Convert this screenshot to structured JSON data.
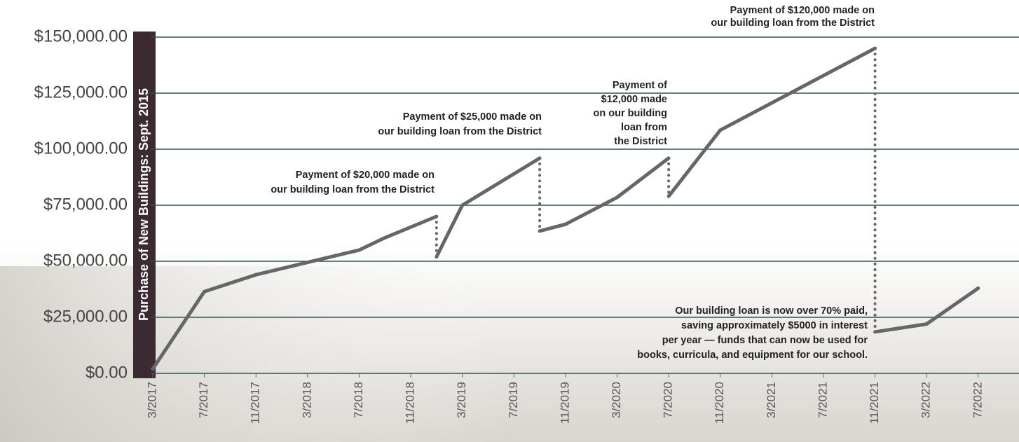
{
  "chart_data": {
    "type": "line",
    "y_axis_label": "Purchase of New Buildings: Sept. 2015",
    "x": [
      "2017-03",
      "2017-07",
      "2017-11",
      "2018-03",
      "2018-07",
      "2018-09",
      "2019-01",
      "2019-01",
      "2019-03",
      "2019-09",
      "2019-09",
      "2019-11",
      "2020-03",
      "2020-07",
      "2020-07",
      "2020-11",
      "2021-11",
      "2021-11",
      "2022-03",
      "2022-07"
    ],
    "series": [
      {
        "color": "#666666",
        "values": [
          2000,
          36500,
          44000,
          49500,
          55000,
          60500,
          70000,
          52000,
          75000,
          96000,
          63500,
          66500,
          78500,
          96000,
          79000,
          108500,
          145000,
          18500,
          22000,
          38000
        ]
      }
    ],
    "xlim": [
      "2017-03",
      "2022-10"
    ],
    "xticks": [
      {
        "value": "2017-03",
        "label": "3/2017"
      },
      {
        "value": "2017-07",
        "label": "7/2017"
      },
      {
        "value": "2017-11",
        "label": "11/2017"
      },
      {
        "value": "2018-03",
        "label": "3/2018"
      },
      {
        "value": "2018-07",
        "label": "7/2018"
      },
      {
        "value": "2018-11",
        "label": "11/2018"
      },
      {
        "value": "2019-03",
        "label": "3/2019"
      },
      {
        "value": "2019-07",
        "label": "7/2019"
      },
      {
        "value": "2019-11",
        "label": "11/2019"
      },
      {
        "value": "2020-03",
        "label": "3/2020"
      },
      {
        "value": "2020-07",
        "label": "7/2020"
      },
      {
        "value": "2020-11",
        "label": "11/2020"
      },
      {
        "value": "2021-03",
        "label": "3/2021"
      },
      {
        "value": "2021-07",
        "label": "7/2021"
      },
      {
        "value": "2021-11",
        "label": "11/2021"
      },
      {
        "value": "2022-03",
        "label": "3/2022"
      },
      {
        "value": "2022-07",
        "label": "7/2022"
      }
    ],
    "ylim": [
      0,
      150000
    ],
    "yticks": [
      {
        "value": 0,
        "label": "$0.00"
      },
      {
        "value": 25000,
        "label": "$25,000.00"
      },
      {
        "value": 50000,
        "label": "$50,000.00"
      },
      {
        "value": 75000,
        "label": "$75,000.00"
      },
      {
        "value": 100000,
        "label": "$100,000.00"
      },
      {
        "value": 125000,
        "label": "$125,000.00"
      },
      {
        "value": 150000,
        "label": "$150,000.00"
      }
    ],
    "grid": true,
    "annotations": [
      [
        "Payment of $20,000 made on",
        "our building loan from the District"
      ],
      [
        "Payment of $25,000 made on",
        "our building loan from the District"
      ],
      [
        "Payment of",
        "$12,000 made",
        "on our building",
        "loan from",
        "the District"
      ],
      [
        "Payment of $120,000 made on",
        "our building loan from the District"
      ],
      [
        "Our building loan is now over 70% paid,",
        "saving approximately $5000 in interest",
        "per year — funds that can now be used for",
        "books, curricula, and equipment for our school."
      ]
    ]
  }
}
